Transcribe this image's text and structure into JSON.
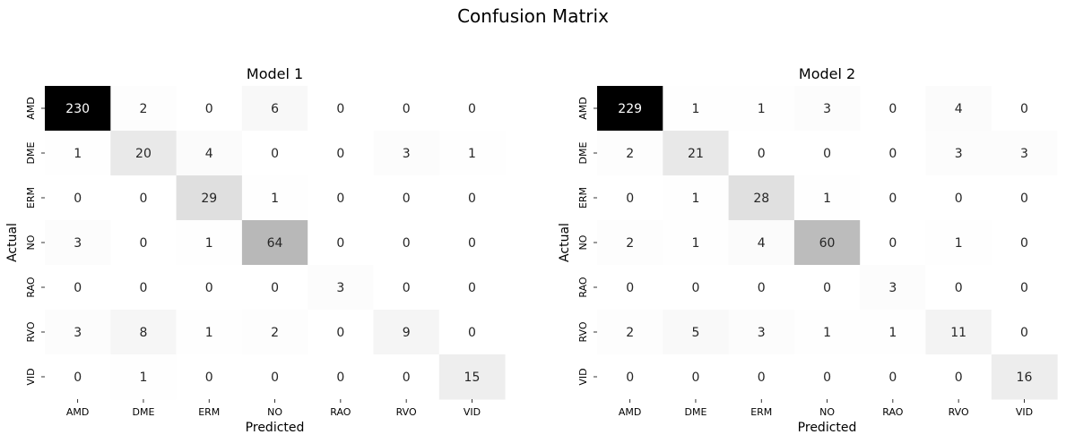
{
  "figure_title": "Confusion Matrix",
  "chart_data": [
    {
      "type": "heatmap",
      "title": "Model 1",
      "xlabel": "Predicted",
      "ylabel": "Actual",
      "x_categories": [
        "AMD",
        "DME",
        "ERM",
        "NO",
        "RAO",
        "RVO",
        "VID"
      ],
      "y_categories": [
        "AMD",
        "DME",
        "ERM",
        "NO",
        "RAO",
        "RVO",
        "VID"
      ],
      "colormap": "Greys",
      "value_range": [
        0,
        230
      ],
      "colorbar": false,
      "values": [
        [
          230,
          2,
          0,
          6,
          0,
          0,
          0
        ],
        [
          1,
          20,
          4,
          0,
          0,
          3,
          1
        ],
        [
          0,
          0,
          29,
          1,
          0,
          0,
          0
        ],
        [
          3,
          0,
          1,
          64,
          0,
          0,
          0
        ],
        [
          0,
          0,
          0,
          0,
          3,
          0,
          0
        ],
        [
          3,
          8,
          1,
          2,
          0,
          9,
          0
        ],
        [
          0,
          1,
          0,
          0,
          0,
          0,
          15
        ]
      ]
    },
    {
      "type": "heatmap",
      "title": "Model 2",
      "xlabel": "Predicted",
      "ylabel": "Actual",
      "x_categories": [
        "AMD",
        "DME",
        "ERM",
        "NO",
        "RAO",
        "RVO",
        "VID"
      ],
      "y_categories": [
        "AMD",
        "DME",
        "ERM",
        "NO",
        "RAO",
        "RVO",
        "VID"
      ],
      "colormap": "Greys",
      "value_range": [
        0,
        229
      ],
      "colorbar": false,
      "values": [
        [
          229,
          1,
          1,
          3,
          0,
          4,
          0
        ],
        [
          2,
          21,
          0,
          0,
          0,
          3,
          3
        ],
        [
          0,
          1,
          28,
          1,
          0,
          0,
          0
        ],
        [
          2,
          1,
          4,
          60,
          0,
          1,
          0
        ],
        [
          0,
          0,
          0,
          0,
          3,
          0,
          0
        ],
        [
          2,
          5,
          3,
          1,
          1,
          11,
          0
        ],
        [
          0,
          0,
          0,
          0,
          0,
          0,
          16
        ]
      ]
    }
  ]
}
